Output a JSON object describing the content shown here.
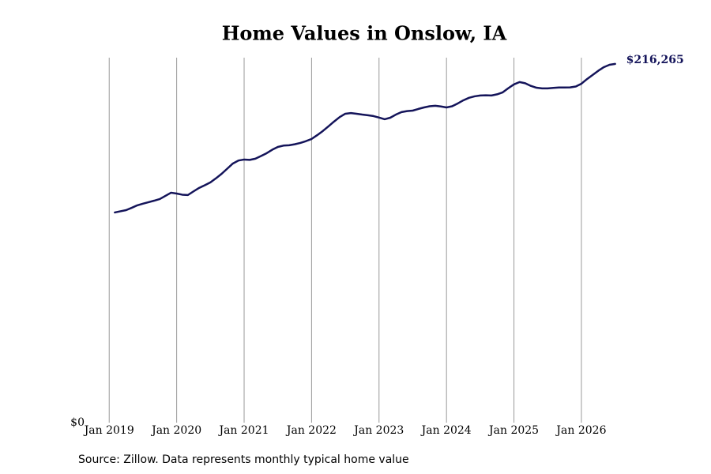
{
  "chart_data": {
    "type": "line",
    "title": "Home Values in Onslow, IA",
    "source": "Source: Zillow. Data represents monthly typical home value",
    "x": [
      "2019-02",
      "2019-03",
      "2019-04",
      "2019-05",
      "2019-06",
      "2019-07",
      "2019-08",
      "2019-09",
      "2019-10",
      "2019-11",
      "2019-12",
      "2020-01",
      "2020-02",
      "2020-03",
      "2020-04",
      "2020-05",
      "2020-06",
      "2020-07",
      "2020-08",
      "2020-09",
      "2020-10",
      "2020-11",
      "2020-12",
      "2021-01",
      "2021-02",
      "2021-03",
      "2021-04",
      "2021-05",
      "2021-06",
      "2021-07",
      "2021-08",
      "2021-09",
      "2021-10",
      "2021-11",
      "2021-12",
      "2022-01",
      "2022-02",
      "2022-03",
      "2022-04",
      "2022-05",
      "2022-06",
      "2022-07",
      "2022-08",
      "2022-09",
      "2022-10",
      "2022-11",
      "2022-12",
      "2023-01",
      "2023-02",
      "2023-03",
      "2023-04",
      "2023-05",
      "2023-06",
      "2023-07",
      "2023-08",
      "2023-09",
      "2023-10",
      "2023-11",
      "2023-12",
      "2024-01",
      "2024-02",
      "2024-03",
      "2024-04",
      "2024-05",
      "2024-06",
      "2024-07",
      "2024-08",
      "2024-09",
      "2024-10",
      "2024-11",
      "2024-12",
      "2025-01",
      "2025-02",
      "2025-03",
      "2025-04",
      "2025-05",
      "2025-06",
      "2025-07",
      "2025-08",
      "2025-09",
      "2025-10",
      "2025-11",
      "2025-12",
      "2026-01",
      "2026-02",
      "2026-03",
      "2026-04",
      "2026-05",
      "2026-06",
      "2026-07"
    ],
    "values": [
      126700,
      127400,
      128100,
      129500,
      131000,
      132000,
      132900,
      133800,
      134800,
      136700,
      138600,
      138100,
      137400,
      137200,
      139400,
      141500,
      143100,
      144800,
      147300,
      150000,
      153100,
      156200,
      158000,
      158600,
      158400,
      159100,
      160700,
      162400,
      164500,
      166200,
      167000,
      167200,
      167800,
      168600,
      169700,
      171000,
      173300,
      175800,
      178600,
      181500,
      184200,
      186200,
      186600,
      186200,
      185700,
      185300,
      184800,
      183900,
      182900,
      183800,
      185700,
      187200,
      187800,
      188100,
      189100,
      190000,
      190700,
      191000,
      190600,
      190000,
      190700,
      192400,
      194300,
      195800,
      196700,
      197200,
      197300,
      197200,
      197900,
      199100,
      201600,
      203900,
      205300,
      204600,
      203000,
      201900,
      201500,
      201500,
      201800,
      202000,
      202000,
      202100,
      202600,
      204300,
      207100,
      209600,
      212100,
      214300,
      215700,
      216265
    ],
    "value_labels": [
      null,
      null,
      null,
      null,
      null,
      null,
      null,
      null,
      null,
      null,
      null,
      null,
      null,
      null,
      null,
      null,
      null,
      null,
      null,
      null,
      null,
      null,
      null,
      null,
      null,
      null,
      null,
      null,
      null,
      null,
      null,
      null,
      null,
      null,
      null,
      null,
      null,
      null,
      null,
      null,
      null,
      null,
      null,
      null,
      null,
      null,
      null,
      null,
      null,
      null,
      null,
      null,
      null,
      null,
      null,
      null,
      null,
      null,
      null,
      null,
      null,
      null,
      null,
      null,
      null,
      null,
      null,
      null,
      null,
      null,
      null,
      null,
      null,
      null,
      null,
      null,
      null,
      null,
      null,
      null,
      null,
      null,
      null,
      null,
      null,
      null,
      null,
      null,
      null,
      "$216,265"
    ],
    "color": "#14145a",
    "xlim": [
      "2018-11",
      "2026-10"
    ],
    "xticks": [
      {
        "value": "2019-01",
        "label": "Jan 2019"
      },
      {
        "value": "2020-01",
        "label": "Jan 2020"
      },
      {
        "value": "2021-01",
        "label": "Jan 2021"
      },
      {
        "value": "2022-01",
        "label": "Jan 2022"
      },
      {
        "value": "2023-01",
        "label": "Jan 2023"
      },
      {
        "value": "2024-01",
        "label": "Jan 2024"
      },
      {
        "value": "2025-01",
        "label": "Jan 2025"
      },
      {
        "value": "2026-01",
        "label": "Jan 2026"
      }
    ],
    "ylim": [
      0,
      220000
    ],
    "yticks": [
      {
        "value": 0,
        "label": "$0"
      }
    ],
    "grid": true
  }
}
